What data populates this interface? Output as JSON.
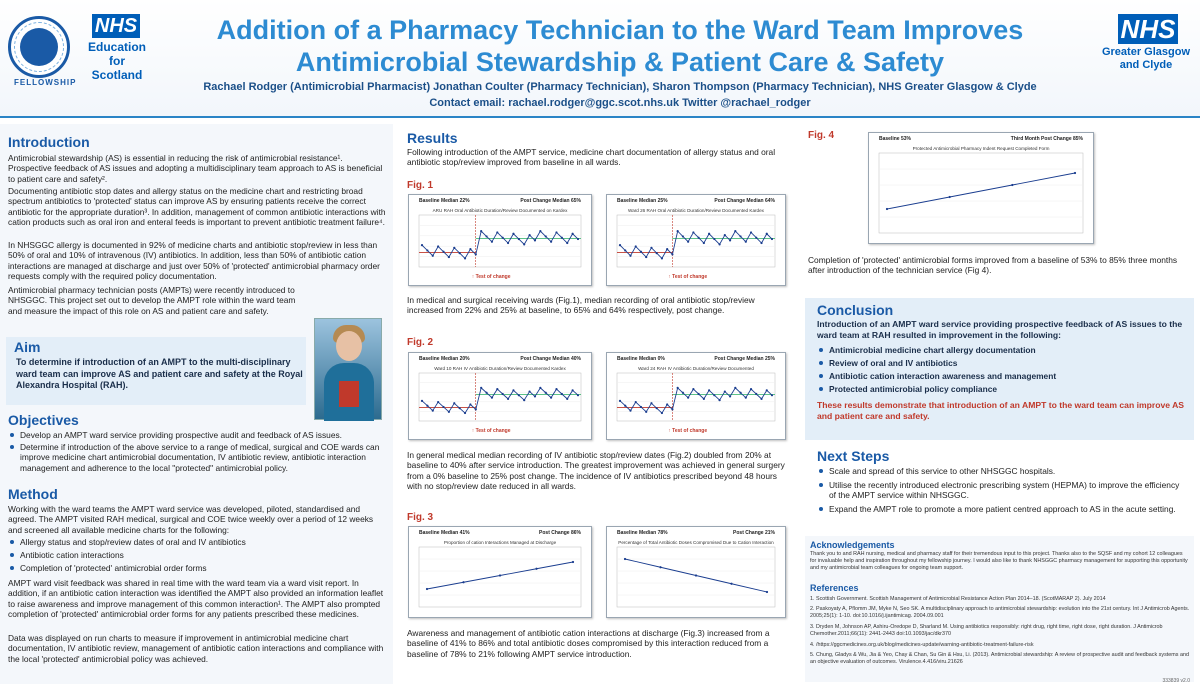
{
  "header": {
    "title_line1": "Addition of a Pharmacy Technician to the Ward Team Improves",
    "title_line2": "Antimicrobial Stewardship & Patient Care & Safety",
    "authors": "Rachael Rodger (Antimicrobial Pharmacist) Jonathan Coulter (Pharmacy Technician), Sharon Thompson (Pharmacy Technician), NHS Greater Glasgow & Clyde",
    "contact": "Contact email: rachael.rodger@ggc.scot.nhs.uk Twitter @rachael_rodger",
    "left_logo_text": "FELLOWSHIP",
    "nhs_left": "NHS",
    "org_left": [
      "Education",
      "for",
      "Scotland"
    ],
    "nhs_right": "NHS",
    "org_right": [
      "Greater Glasgow",
      "and Clyde"
    ]
  },
  "intro": {
    "heading": "Introduction",
    "p1": "Antimicrobial stewardship (AS) is essential in reducing the risk of antimicrobial resistance¹. Prospective feedback of AS issues and adopting a multidisciplinary team approach to AS is beneficial to patient care and safety².",
    "p2": "Documenting antibiotic stop dates and allergy status on the medicine chart and restricting broad spectrum antibiotics to 'protected' status can improve AS by ensuring patients receive the correct antibiotic for the appropriate duration³. In addition, management of common antibiotic interactions with cation products such as oral iron and enteral feeds is important to prevent antibiotic treatment failure⁴.",
    "p3": "In NHSGGC allergy is documented in 92% of medicine charts and antibiotic stop/review in less than 50% of oral and 10% of intravenous (IV) antibiotics. In addition, less than 50% of antibiotic cation interactions are managed at discharge and just over 50% of 'protected' antimicrobial pharmacy order requests comply with the required policy documentation.",
    "p4": "Antimicrobial pharmacy technician posts (AMPTs) were recently introduced to NHSGGC. This project set out to develop the AMPT role within the ward team and measure the impact of this role on AS and patient care and safety."
  },
  "aim": {
    "heading": "Aim",
    "text": "To determine if introduction of an AMPT to the multi-disciplinary ward team can improve AS and patient care and safety at the Royal Alexandra Hospital (RAH)."
  },
  "objectives": {
    "heading": "Objectives",
    "items": [
      "Develop an AMPT ward service providing prospective audit and feedback of AS issues.",
      "Determine if introduction of the above service to a range of medical, surgical and COE wards can improve medicine chart antimicrobial documentation, IV antibiotic review, antibiotic interaction management and adherence to the local \"protected\" antimicrobial policy."
    ]
  },
  "method": {
    "heading": "Method",
    "p1": "Working with the ward teams the AMPT ward service was developed, piloted, standardised and agreed. The AMPT visited RAH medical, surgical and COE twice weekly over a period of 12 weeks and screened all available medicine charts for the following:",
    "items": [
      "Allergy status and stop/review dates of oral and IV antibiotics",
      "Antibiotic cation interactions",
      "Completion of 'protected' antimicrobial order forms"
    ],
    "p2": "AMPT ward visit feedback was shared in real time with the ward team via a ward visit report. In addition, if an antibiotic cation interaction was identified the AMPT also provided an information leaflet to raise awareness and improve management of this common interaction¹. The AMPT also prompted completion of 'protected' antimicrobial order forms for any patients prescribed these medicines.",
    "p3": "Data was displayed on run charts to measure if improvement in antimicrobial medicine chart documentation, IV antibiotic review, management of antibiotic cation interactions and compliance with the local 'protected' antimicrobial policy was achieved."
  },
  "results": {
    "heading": "Results",
    "intro": "Following introduction of the AMPT service, medicine chart documentation of allergy status and oral antibiotic stop/review improved from baseline in all wards.",
    "fig1_label": "Fig. 1",
    "fig1_text": "In medical and surgical receiving wards (Fig.1), median recording of oral antibiotic stop/review increased from 22% and 25% at baseline, to 65% and 64% respectively, post change.",
    "fig2_label": "Fig. 2",
    "fig2_text": "In general medical median recording of IV antibiotic stop/review dates (Fig.2) doubled from 20% at baseline to 40% after service introduction. The greatest improvement was achieved in general surgery from a 0% baseline to 25% post change. The incidence of IV antibiotics prescribed beyond 48 hours with no stop/review date reduced in all wards.",
    "fig3_label": "Fig. 3",
    "fig3_text": "Awareness and management of antibiotic cation interactions at discharge (Fig.3) increased from a baseline of 41% to 86% and total antibiotic doses compromised by this interaction reduced from a baseline of 78% to 21% following AMPT service introduction.",
    "fig4_label": "Fig. 4",
    "fig4_text": "Completion of 'protected' antimicrobial forms improved from a baseline of 53% to 85% three months after introduction of the technician service (Fig 4).",
    "test_of_change": "Test of change"
  },
  "charts": {
    "c1a": {
      "baseline": "Baseline Median 22%",
      "post": "Post Change Median 65%",
      "title": "ARU RAH Oral Antibiotic Duration/Review Documented on Kardex"
    },
    "c1b": {
      "baseline": "Baseline Median 25%",
      "post": "Post Change Median 64%",
      "title": "Ward 26 RAH Oral Antibiotic Duration/Review Documented Kardex"
    },
    "c2a": {
      "baseline": "Baseline Median 20%",
      "post": "Post Change Median 40%",
      "title": "Ward 10 RAH IV Antibiotic Duration/Review Documented Kardex"
    },
    "c2b": {
      "baseline": "Baseline Median 0%",
      "post": "Post Change Median 25%",
      "title": "Ward 24 RAH IV Antibiotic Duration/Review Documented"
    },
    "c3a": {
      "baseline": "Baseline Median 41%",
      "post": "Post Change 86%",
      "title": "Proportion of cation Interactions Managed at Discharge"
    },
    "c3b": {
      "baseline": "Baseline Median 78%",
      "post": "Post Change 21%",
      "title": "Percentage of Total Antibiotic Doses Compromised Due to Cation Interaction"
    },
    "c4": {
      "baseline": "Baseline 53%",
      "post": "Third Month Post Change 85%",
      "title": "Protected Antimicrobial Pharmacy Indent Request Completed Form"
    }
  },
  "conclusion": {
    "heading": "Conclusion",
    "intro": "Introduction of an AMPT ward service providing prospective feedback of AS issues to the ward team at RAH resulted in improvement in the following:",
    "items": [
      "Antimicrobial medicine chart allergy documentation",
      "Review of oral and IV antibiotics",
      "Antibiotic cation interaction awareness and management",
      "Protected antimicrobial policy compliance"
    ],
    "summary": "These results demonstrate that introduction of an AMPT to the ward team can improve AS and patient care and safety."
  },
  "next_steps": {
    "heading": "Next Steps",
    "items": [
      "Scale and spread of this service to other NHSGGC hospitals.",
      "Utilise the recently introduced electronic prescribing system (HEPMA) to improve the efficiency of the AMPT service within NHSGGC.",
      "Expand the AMPT role to promote a more patient centred approach to AS in the acute setting."
    ]
  },
  "acknowledgements": {
    "heading": "Acknowledgements",
    "text": "Thank you to and RAH nursing, medical and pharmacy staff for their tremendous input to this project. Thanks also to the SQSF and my cohort 12 colleagues for invaluable help and inspiration throughout my fellowship journey. I would also like to thank NHSGGC pharmacy management for supporting this opportunity and my antimicrobial team colleagues for ongoing team support."
  },
  "references": {
    "heading": "References",
    "items": [
      "1.   Scottish Government. Scottish Management of Antimicrobial Resistance Action Plan 2014–18. (ScotMARAP 2). July 2014",
      "2.   Paskoyaty A, Pflomm JM, Myke N, Seo SK. A multidisciplinary approach to antimicrobial stewardship: evolution into the 21st century. Int J Antimicrob Agents. 2005;25(1): 1-10. doi:10.1016/j.ijantimicag. 2004.09.001",
      "3.   Dryden M, Johnson AP, Ashiru-Oredope D, Sharland M. Using antibiotics responsibly: right drug, right time, right dose, right duration. J Antimicrob Chemother.2011;66(11): 2441-2443 doi:10.1093/jac/dkr370",
      "4.   /https://ggcmedicines.org.uk/blog/medicines-update/warning-antibiotic-treatment-failure-risk",
      "5.   Chung, Gladys & Wu, Jia & Yeo, Chay & Chan, Su Gin & Hsu, Li. (2013). Antimicrobial stewardship: A review of prospective audit and feedback systems and an objective evaluation of outcomes. Virulence.4.416/viru.21626"
    ],
    "stamp": "333839 v2.0"
  }
}
